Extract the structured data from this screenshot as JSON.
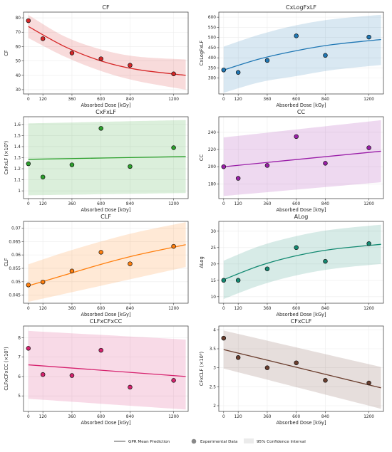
{
  "chart_data": [
    {
      "type": "scatter",
      "title": "CF",
      "xlabel": "Absorbed Dose [kGy]",
      "ylabel": "CF",
      "color": "#d62728",
      "xticks": [
        "0",
        "120",
        "360",
        "600",
        "840",
        "1200"
      ],
      "xlim": [
        -40,
        1320
      ],
      "yticks": [
        "30",
        "40",
        "50",
        "60",
        "70",
        "80"
      ],
      "ytick_values": [
        30,
        40,
        50,
        60,
        70,
        80
      ],
      "ylim": [
        27,
        84
      ],
      "series": [
        {
          "x": [
            0,
            120,
            360,
            600,
            840,
            1200
          ],
          "y": [
            78,
            65.5,
            55.5,
            51.5,
            47,
            41
          ]
        },
        {
          "x": [
            0,
            300,
            600,
            900,
            1300
          ],
          "y": [
            74,
            60,
            50,
            44,
            40
          ]
        },
        {
          "x": [
            0,
            300,
            600,
            900,
            1300
          ],
          "y": [
            82,
            67,
            58,
            53,
            51
          ]
        },
        {
          "x": [
            0,
            300,
            600,
            900,
            1300
          ],
          "y": [
            66,
            53,
            43,
            36,
            30
          ]
        }
      ]
    },
    {
      "type": "scatter",
      "title": "CxLogFxLF",
      "xlabel": "Absorbed Dose [kGy]",
      "ylabel": "CxLogFxLF",
      "color": "#1f77b4",
      "xticks": [
        "0",
        "120",
        "360",
        "600",
        "840",
        "1200"
      ],
      "xlim": [
        -40,
        1320
      ],
      "yticks": [
        "300",
        "350",
        "400",
        "450",
        "500",
        "550",
        "600"
      ],
      "ytick_values": [
        300,
        350,
        400,
        450,
        500,
        550,
        600
      ],
      "ylim": [
        222,
        625
      ],
      "series": [
        {
          "x": [
            0,
            120,
            360,
            600,
            840,
            1200
          ],
          "y": [
            340,
            328,
            387,
            508,
            412,
            502
          ]
        },
        {
          "x": [
            0,
            300,
            600,
            900,
            1300
          ],
          "y": [
            340,
            395,
            435,
            465,
            490
          ]
        },
        {
          "x": [
            0,
            300,
            600,
            900,
            1300
          ],
          "y": [
            455,
            515,
            560,
            590,
            612
          ]
        },
        {
          "x": [
            0,
            300,
            600,
            900,
            1300
          ],
          "y": [
            228,
            280,
            310,
            340,
            365
          ]
        }
      ]
    },
    {
      "type": "scatter",
      "title": "CxFxLF",
      "xlabel": "Absorbed Dose [kGy]",
      "ylabel": "CxFxLF (×10⁵)",
      "color": "#2ca02c",
      "xticks": [
        "0",
        "120",
        "360",
        "600",
        "840",
        "1200"
      ],
      "xlim": [
        -40,
        1320
      ],
      "yticks": [
        "1",
        "1.1",
        "1.2",
        "1.3",
        "1.4",
        "1.5",
        "1.6"
      ],
      "ytick_values": [
        1,
        1.1,
        1.2,
        1.3,
        1.4,
        1.5,
        1.6
      ],
      "ylim": [
        0.93,
        1.67
      ],
      "series": [
        {
          "x": [
            0,
            120,
            360,
            600,
            840,
            1200
          ],
          "y": [
            1.245,
            1.125,
            1.235,
            1.565,
            1.22,
            1.39
          ]
        },
        {
          "x": [
            0,
            1300
          ],
          "y": [
            1.285,
            1.31
          ]
        },
        {
          "x": [
            0,
            1300
          ],
          "y": [
            1.61,
            1.64
          ]
        },
        {
          "x": [
            0,
            1300
          ],
          "y": [
            0.96,
            0.98
          ]
        }
      ]
    },
    {
      "type": "scatter",
      "title": "CC",
      "xlabel": "Absorbed Dose [kGy]",
      "ylabel": "CC",
      "color": "#9a1ea8",
      "xticks": [
        "0",
        "120",
        "360",
        "600",
        "840",
        "1200"
      ],
      "xlim": [
        -40,
        1320
      ],
      "yticks": [
        "180",
        "200",
        "220",
        "240"
      ],
      "ytick_values": [
        180,
        200,
        220,
        240
      ],
      "ylim": [
        163,
        258
      ],
      "series": [
        {
          "x": [
            0,
            120,
            360,
            600,
            840,
            1200
          ],
          "y": [
            200,
            186.5,
            201.5,
            235,
            204,
            222
          ]
        },
        {
          "x": [
            0,
            1300
          ],
          "y": [
            200,
            218
          ]
        },
        {
          "x": [
            0,
            1300
          ],
          "y": [
            234,
            254
          ]
        },
        {
          "x": [
            0,
            1300
          ],
          "y": [
            166,
            182
          ]
        }
      ]
    },
    {
      "type": "scatter",
      "title": "CLF",
      "xlabel": "Absorbed Dose [kGy]",
      "ylabel": "CLF",
      "color": "#ff7f0e",
      "xticks": [
        "0",
        "120",
        "360",
        "600",
        "840",
        "1200"
      ],
      "xlim": [
        -40,
        1320
      ],
      "yticks": [
        "0.045",
        "0.05",
        "0.055",
        "0.06",
        "0.065",
        "0.07"
      ],
      "ytick_values": [
        0.045,
        0.05,
        0.055,
        0.06,
        0.065,
        0.07
      ],
      "ylim": [
        0.042,
        0.0725
      ],
      "series": [
        {
          "x": [
            0,
            120,
            360,
            600,
            840,
            1200
          ],
          "y": [
            0.0488,
            0.0499,
            0.054,
            0.061,
            0.0567,
            0.0632
          ]
        },
        {
          "x": [
            0,
            300,
            600,
            900,
            1300
          ],
          "y": [
            0.0485,
            0.0525,
            0.0565,
            0.06,
            0.0638
          ]
        },
        {
          "x": [
            0,
            300,
            600,
            900,
            1300
          ],
          "y": [
            0.0565,
            0.061,
            0.065,
            0.0685,
            0.0722
          ]
        },
        {
          "x": [
            0,
            300,
            600,
            900,
            1300
          ],
          "y": [
            0.0425,
            0.0455,
            0.0485,
            0.0515,
            0.0555
          ]
        }
      ]
    },
    {
      "type": "scatter",
      "title": "ALog",
      "xlabel": "Absorbed Dose [kGy]",
      "ylabel": "ALog",
      "color": "#138a72",
      "xticks": [
        "0",
        "120",
        "360",
        "600",
        "840",
        "1200"
      ],
      "xlim": [
        -40,
        1320
      ],
      "yticks": [
        "10",
        "15",
        "20",
        "25",
        "30"
      ],
      "ytick_values": [
        10,
        15,
        20,
        25,
        30
      ],
      "ylim": [
        8,
        33
      ],
      "series": [
        {
          "x": [
            0,
            120,
            360,
            600,
            840,
            1200
          ],
          "y": [
            15,
            15,
            18.5,
            25,
            20.8,
            26.2
          ]
        },
        {
          "x": [
            0,
            300,
            600,
            900,
            1300
          ],
          "y": [
            15.2,
            19.5,
            22.5,
            24.5,
            26
          ]
        },
        {
          "x": [
            0,
            300,
            600,
            900,
            1300
          ],
          "y": [
            21,
            25.5,
            28.5,
            30.5,
            32
          ]
        },
        {
          "x": [
            0,
            300,
            600,
            900,
            1300
          ],
          "y": [
            9.3,
            13.5,
            16.5,
            18.5,
            20
          ]
        }
      ]
    },
    {
      "type": "scatter",
      "title": "CLFxCFxCC",
      "xlabel": "Absorbed Dose [kGy]",
      "ylabel": "CLFxCFxCC (×10⁵)",
      "color": "#d6226e",
      "xticks": [
        "0",
        "120",
        "360",
        "600",
        "840",
        "1200"
      ],
      "xlim": [
        -40,
        1320
      ],
      "yticks": [
        "5",
        "6",
        "7",
        "8"
      ],
      "ytick_values": [
        5,
        6,
        7,
        8
      ],
      "ylim": [
        4.2,
        8.6
      ],
      "series": [
        {
          "x": [
            0,
            120,
            360,
            600,
            840,
            1200
          ],
          "y": [
            7.45,
            6.1,
            6.05,
            7.35,
            5.45,
            5.8
          ]
        },
        {
          "x": [
            0,
            1300
          ],
          "y": [
            6.6,
            6.0
          ]
        },
        {
          "x": [
            0,
            1300
          ],
          "y": [
            8.35,
            7.9
          ]
        },
        {
          "x": [
            0,
            1300
          ],
          "y": [
            4.85,
            4.3
          ]
        }
      ]
    },
    {
      "type": "scatter",
      "title": "CFxCLF",
      "xlabel": "Absorbed Dose [kGy]",
      "ylabel": "CFxCLF (×10⁰)",
      "color": "#6b3e2e",
      "xticks": [
        "0",
        "120",
        "360",
        "600",
        "840",
        "1200"
      ],
      "xlim": [
        -40,
        1320
      ],
      "yticks": [
        "2",
        "2.5",
        "3",
        "3.5",
        "4"
      ],
      "ytick_values": [
        2,
        2.5,
        3,
        3.5,
        4
      ],
      "ylim": [
        1.85,
        4.1
      ],
      "series": [
        {
          "x": [
            0,
            120,
            360,
            600,
            840,
            1200
          ],
          "y": [
            3.78,
            3.27,
            3.0,
            3.13,
            2.67,
            2.6
          ]
        },
        {
          "x": [
            0,
            1300
          ],
          "y": [
            3.48,
            2.47
          ]
        },
        {
          "x": [
            0,
            1300
          ],
          "y": [
            3.98,
            3.02
          ]
        },
        {
          "x": [
            0,
            1300
          ],
          "y": [
            2.98,
            1.92
          ]
        }
      ]
    }
  ],
  "legend": {
    "position": "bottom",
    "items": [
      "GPR Mean Prediction",
      "Experimental Data",
      "95% Confidence Interval"
    ]
  }
}
